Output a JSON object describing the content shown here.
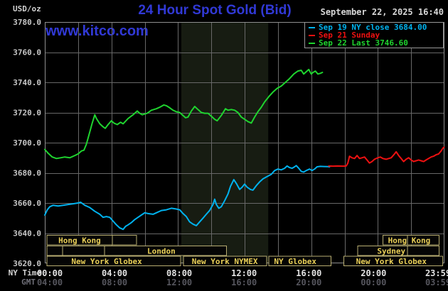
{
  "header": {
    "unit": "USD/oz",
    "title": "24 Hour Spot Gold (Bid)",
    "datetime": "September 22, 2025 16:40",
    "watermark": "www.kitco.com"
  },
  "legend": {
    "items": [
      {
        "text": "Sep 19 NY close 3684.00",
        "color": "#00b2ee"
      },
      {
        "text": "Sep 21 Sunday",
        "color": "#ee1111"
      },
      {
        "text": "Sep 22 Last 3746.60",
        "color": "#1fd42f"
      }
    ]
  },
  "axes": {
    "ny_row_label": "NY Time",
    "gmt_row_label": "GMT"
  },
  "colors": {
    "background": "#000000",
    "title_blue": "#3139d6",
    "grid": "#686868",
    "plot_border": "#8f8f8f",
    "y_tick_text": "#c8c8c8",
    "ny_tick_text": "#e2e2e2",
    "gmt_tick_text": "#56565e",
    "session_border": "#b9ae72",
    "session_text": "#e9cf57",
    "band": "#171c12"
  },
  "chart_data": {
    "type": "line",
    "title": "24 Hour Spot Gold (Bid)",
    "y_axis": {
      "unit": "USD/oz",
      "range": [
        3620,
        3780
      ],
      "tick_step": 20,
      "tick_labels": [
        "3780.0",
        "3760.0",
        "3740.0",
        "3720.0",
        "3700.0",
        "3680.0",
        "3660.0",
        "3640.0",
        "3620.0"
      ]
    },
    "x_axis": {
      "range_hours": [
        0,
        24
      ],
      "gridline_step_hours": 2,
      "tick_hours": [
        0,
        4,
        8,
        12,
        16,
        20,
        23.983
      ],
      "ny_tick_labels": [
        "00:00",
        "04:00",
        "08:00",
        "12:00",
        "16:00",
        "20:00",
        "23:59"
      ],
      "gmt_tick_labels": [
        "04:00",
        "08:00",
        "12:00",
        "16:00",
        "20:00",
        "00:00",
        "03:59"
      ]
    },
    "highlight_band": {
      "from_hour": 8.2,
      "to_hour": 13.42,
      "color": "#171c12"
    },
    "series": [
      {
        "name": "Sep 19 NY close",
        "color": "#00b2ee",
        "close": 3684.0,
        "points": [
          [
            0,
            3652
          ],
          [
            0.15,
            3655.5
          ],
          [
            0.3,
            3657.5
          ],
          [
            0.5,
            3658.5
          ],
          [
            0.8,
            3658
          ],
          [
            1.1,
            3658.5
          ],
          [
            1.4,
            3659
          ],
          [
            1.7,
            3659.5
          ],
          [
            2,
            3660
          ],
          [
            2.15,
            3660.5
          ],
          [
            2.4,
            3658.5
          ],
          [
            2.7,
            3657
          ],
          [
            3,
            3654.5
          ],
          [
            3.3,
            3652.5
          ],
          [
            3.5,
            3650.5
          ],
          [
            3.7,
            3651
          ],
          [
            3.9,
            3650.5
          ],
          [
            4.1,
            3648
          ],
          [
            4.3,
            3645.5
          ],
          [
            4.5,
            3643.5
          ],
          [
            4.7,
            3642.5
          ],
          [
            4.85,
            3644.5
          ],
          [
            5,
            3645.5
          ],
          [
            5.2,
            3647
          ],
          [
            5.4,
            3649
          ],
          [
            5.6,
            3650.5
          ],
          [
            5.8,
            3652
          ],
          [
            6,
            3653.5
          ],
          [
            6.2,
            3653
          ],
          [
            6.5,
            3652.5
          ],
          [
            6.7,
            3653.5
          ],
          [
            7,
            3655
          ],
          [
            7.3,
            3655.5
          ],
          [
            7.6,
            3656.5
          ],
          [
            7.9,
            3656
          ],
          [
            8.1,
            3655.5
          ],
          [
            8.3,
            3653
          ],
          [
            8.5,
            3651
          ],
          [
            8.7,
            3647.5
          ],
          [
            8.9,
            3646
          ],
          [
            9.1,
            3645
          ],
          [
            9.3,
            3647.5
          ],
          [
            9.5,
            3650
          ],
          [
            9.7,
            3652.5
          ],
          [
            9.9,
            3655
          ],
          [
            10.1,
            3659
          ],
          [
            10.2,
            3662.5
          ],
          [
            10.3,
            3659
          ],
          [
            10.45,
            3656.5
          ],
          [
            10.6,
            3657.5
          ],
          [
            10.8,
            3661.5
          ],
          [
            11,
            3666
          ],
          [
            11.15,
            3671
          ],
          [
            11.35,
            3675.5
          ],
          [
            11.5,
            3673
          ],
          [
            11.7,
            3669
          ],
          [
            11.85,
            3670.5
          ],
          [
            12,
            3672.5
          ],
          [
            12.15,
            3670.5
          ],
          [
            12.35,
            3669
          ],
          [
            12.5,
            3668.5
          ],
          [
            12.7,
            3671.5
          ],
          [
            12.9,
            3674
          ],
          [
            13.1,
            3676
          ],
          [
            13.35,
            3677.5
          ],
          [
            13.6,
            3679
          ],
          [
            13.8,
            3681.5
          ],
          [
            14,
            3682.5
          ],
          [
            14.2,
            3682
          ],
          [
            14.4,
            3683
          ],
          [
            14.55,
            3684.5
          ],
          [
            14.7,
            3683.5
          ],
          [
            14.85,
            3683
          ],
          [
            15,
            3684
          ],
          [
            15.1,
            3684.8
          ],
          [
            15.25,
            3683
          ],
          [
            15.4,
            3681
          ],
          [
            15.55,
            3680.5
          ],
          [
            15.7,
            3681.5
          ],
          [
            15.9,
            3682.5
          ],
          [
            16.05,
            3681.5
          ],
          [
            16.2,
            3682.5
          ],
          [
            16.35,
            3684
          ],
          [
            16.55,
            3684.3
          ],
          [
            16.75,
            3684.2
          ],
          [
            17,
            3684.1
          ],
          [
            17.1,
            3684
          ]
        ]
      },
      {
        "name": "Sep 21 Sunday",
        "color": "#ee1111",
        "points": [
          [
            17.05,
            3684.5
          ],
          [
            17.3,
            3684.4
          ],
          [
            17.6,
            3684.5
          ],
          [
            17.9,
            3684.4
          ],
          [
            18.1,
            3684.5
          ],
          [
            18.2,
            3686.5
          ],
          [
            18.3,
            3691
          ],
          [
            18.45,
            3690
          ],
          [
            18.6,
            3689.5
          ],
          [
            18.75,
            3691.5
          ],
          [
            18.9,
            3689.5
          ],
          [
            19.05,
            3690
          ],
          [
            19.2,
            3690.5
          ],
          [
            19.35,
            3688.5
          ],
          [
            19.5,
            3686.5
          ],
          [
            19.65,
            3687.5
          ],
          [
            19.8,
            3689
          ],
          [
            20,
            3690
          ],
          [
            20.15,
            3690.5
          ],
          [
            20.3,
            3689.5
          ],
          [
            20.5,
            3689
          ],
          [
            20.65,
            3689.5
          ],
          [
            20.8,
            3690
          ],
          [
            21,
            3692.5
          ],
          [
            21.1,
            3694
          ],
          [
            21.25,
            3691.5
          ],
          [
            21.4,
            3689.5
          ],
          [
            21.55,
            3687.5
          ],
          [
            21.7,
            3689
          ],
          [
            21.85,
            3690
          ],
          [
            22,
            3688.5
          ],
          [
            22.15,
            3687.5
          ],
          [
            22.3,
            3688
          ],
          [
            22.45,
            3688.5
          ],
          [
            22.6,
            3688
          ],
          [
            22.75,
            3687.5
          ],
          [
            22.9,
            3688.5
          ],
          [
            23.05,
            3689.5
          ],
          [
            23.2,
            3690.5
          ],
          [
            23.35,
            3691
          ],
          [
            23.5,
            3692
          ],
          [
            23.65,
            3692.5
          ],
          [
            23.8,
            3694.5
          ],
          [
            23.92,
            3696.5
          ],
          [
            23.98,
            3697
          ]
        ]
      },
      {
        "name": "Sep 22",
        "last": 3746.6,
        "color": "#1fd42f",
        "points": [
          [
            0,
            3695.5
          ],
          [
            0.2,
            3693
          ],
          [
            0.45,
            3690.5
          ],
          [
            0.7,
            3689.5
          ],
          [
            0.95,
            3690
          ],
          [
            1.2,
            3690.5
          ],
          [
            1.5,
            3690
          ],
          [
            1.8,
            3691.5
          ],
          [
            2,
            3692.5
          ],
          [
            2.2,
            3694.5
          ],
          [
            2.35,
            3695
          ],
          [
            2.5,
            3699
          ],
          [
            2.7,
            3707
          ],
          [
            2.85,
            3713
          ],
          [
            3,
            3718.5
          ],
          [
            3.1,
            3716
          ],
          [
            3.3,
            3712.5
          ],
          [
            3.5,
            3710.5
          ],
          [
            3.63,
            3709.5
          ],
          [
            3.8,
            3712
          ],
          [
            4,
            3714.5
          ],
          [
            4.15,
            3713
          ],
          [
            4.35,
            3712
          ],
          [
            4.55,
            3713.5
          ],
          [
            4.7,
            3712.5
          ],
          [
            5,
            3716
          ],
          [
            5.3,
            3718.5
          ],
          [
            5.55,
            3721
          ],
          [
            5.7,
            3719.5
          ],
          [
            5.85,
            3718.5
          ],
          [
            6,
            3719
          ],
          [
            6.15,
            3719.5
          ],
          [
            6.4,
            3721.5
          ],
          [
            6.7,
            3722.5
          ],
          [
            6.9,
            3723.5
          ],
          [
            7.15,
            3725
          ],
          [
            7.3,
            3724.5
          ],
          [
            7.45,
            3723.5
          ],
          [
            7.7,
            3721.5
          ],
          [
            7.9,
            3720.5
          ],
          [
            8.1,
            3720
          ],
          [
            8.3,
            3718
          ],
          [
            8.45,
            3716.5
          ],
          [
            8.6,
            3717
          ],
          [
            8.8,
            3721
          ],
          [
            9,
            3724
          ],
          [
            9.2,
            3722
          ],
          [
            9.4,
            3720
          ],
          [
            9.6,
            3719.5
          ],
          [
            9.8,
            3719.5
          ],
          [
            10,
            3717.5
          ],
          [
            10.2,
            3715.5
          ],
          [
            10.35,
            3714.5
          ],
          [
            10.6,
            3718
          ],
          [
            10.85,
            3722.5
          ],
          [
            11,
            3721.5
          ],
          [
            11.2,
            3722
          ],
          [
            11.4,
            3721.5
          ],
          [
            11.6,
            3720
          ],
          [
            11.8,
            3717
          ],
          [
            12,
            3715.5
          ],
          [
            12.2,
            3714
          ],
          [
            12.4,
            3713
          ],
          [
            12.6,
            3717
          ],
          [
            12.8,
            3720.5
          ],
          [
            13,
            3723.5
          ],
          [
            13.2,
            3727
          ],
          [
            13.45,
            3730.5
          ],
          [
            13.7,
            3733.5
          ],
          [
            13.95,
            3736
          ],
          [
            14.2,
            3737.5
          ],
          [
            14.45,
            3740
          ],
          [
            14.7,
            3742.5
          ],
          [
            14.95,
            3745.5
          ],
          [
            15.2,
            3747.5
          ],
          [
            15.4,
            3748
          ],
          [
            15.55,
            3745.5
          ],
          [
            15.7,
            3747
          ],
          [
            15.85,
            3748.5
          ],
          [
            16,
            3745.5
          ],
          [
            16.1,
            3746.5
          ],
          [
            16.25,
            3747.5
          ],
          [
            16.4,
            3745.5
          ],
          [
            16.55,
            3746
          ],
          [
            16.67,
            3746.6
          ]
        ]
      }
    ],
    "sessions": {
      "rows": [
        {
          "boxes": [
            {
              "label": "Hong Kong",
              "from": 0.13,
              "to": 5.51,
              "dividers": [
                4.06
              ],
              "tc": 2.09
            },
            {
              "label": "Hong Kong",
              "from": 20.3,
              "to": 23.68,
              "dividers": [
                21.79
              ],
              "tc": 21.88
            }
          ]
        },
        {
          "boxes": [
            {
              "label": "",
              "from": 0.13,
              "to": 1.07
            },
            {
              "label": "",
              "from": 1.07,
              "to": 3.59
            },
            {
              "label": "London",
              "from": 3.59,
              "to": 10.9,
              "tc": 7.0
            },
            {
              "label": "Sydney",
              "from": 18.8,
              "to": 23.68,
              "dividers": [
                21.79
              ],
              "tc": 20.81
            }
          ]
        },
        {
          "boxes": [
            {
              "label": "New York Globex",
              "from": 0.13,
              "to": 8.16,
              "tc": 3.72
            },
            {
              "label": "New York NYMEX",
              "from": 8.33,
              "to": 13.33,
              "tc": 10.81
            },
            {
              "label": "NY Globex",
              "from": 13.46,
              "to": 17.18,
              "tc": 15.04
            },
            {
              "label": "New York Globex",
              "from": 17.95,
              "to": 23.89,
              "tc": 20.81
            }
          ]
        }
      ]
    }
  }
}
